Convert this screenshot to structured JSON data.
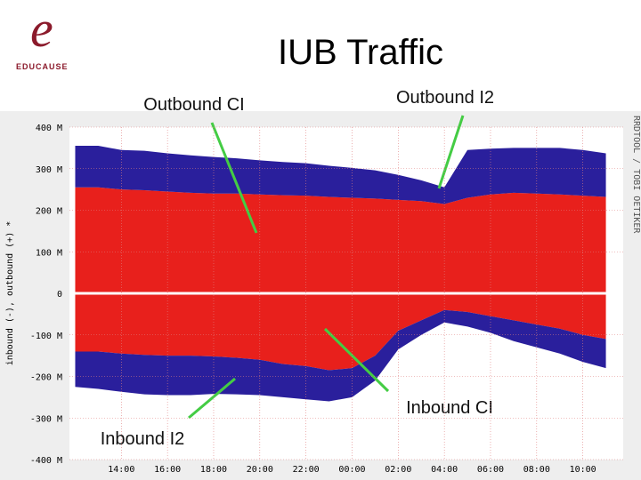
{
  "logo": "EDUCAUSE",
  "chart_data": {
    "type": "area",
    "title": "IUB Traffic",
    "y_label": "inbound (-), outbound (+) *",
    "side_label": "RRDTOOL / TOBI OETIKER",
    "x": [
      12,
      13,
      14,
      15,
      16,
      17,
      18,
      19,
      20,
      21,
      22,
      23,
      24,
      25,
      26,
      27,
      28,
      29,
      30,
      31,
      32,
      33,
      34,
      35
    ],
    "series": [
      {
        "name": "Outbound CI",
        "color": "#e8201c",
        "values": [
          255,
          255,
          250,
          248,
          245,
          242,
          240,
          240,
          238,
          236,
          235,
          232,
          230,
          228,
          225,
          222,
          215,
          230,
          238,
          242,
          240,
          238,
          235,
          232
        ]
      },
      {
        "name": "Outbound I2",
        "color": "#2a1f9c",
        "values": [
          100,
          100,
          95,
          95,
          92,
          90,
          88,
          85,
          82,
          80,
          78,
          75,
          72,
          68,
          60,
          50,
          40,
          115,
          110,
          108,
          110,
          112,
          110,
          105
        ]
      },
      {
        "name": "Inbound CI",
        "color": "#e8201c",
        "values": [
          -140,
          -140,
          -145,
          -148,
          -150,
          -150,
          -152,
          -155,
          -160,
          -170,
          -175,
          -185,
          -180,
          -150,
          -90,
          -65,
          -40,
          -45,
          -55,
          -65,
          -75,
          -85,
          -100,
          -110
        ]
      },
      {
        "name": "Inbound I2",
        "color": "#2a1f9c",
        "values": [
          -85,
          -90,
          -92,
          -95,
          -95,
          -95,
          -90,
          -88,
          -85,
          -80,
          -80,
          -75,
          -70,
          -60,
          -45,
          -35,
          -30,
          -35,
          -40,
          -50,
          -55,
          -60,
          -65,
          -70
        ]
      }
    ],
    "xlim": [
      11.75,
      35.75
    ],
    "xticks": [
      {
        "value": 14,
        "label": "14:00"
      },
      {
        "value": 16,
        "label": "16:00"
      },
      {
        "value": 18,
        "label": "18:00"
      },
      {
        "value": 20,
        "label": "20:00"
      },
      {
        "value": 22,
        "label": "22:00"
      },
      {
        "value": 24,
        "label": "00:00"
      },
      {
        "value": 26,
        "label": "02:00"
      },
      {
        "value": 28,
        "label": "04:00"
      },
      {
        "value": 30,
        "label": "06:00"
      },
      {
        "value": 32,
        "label": "08:00"
      },
      {
        "value": 34,
        "label": "10:00"
      }
    ],
    "ylim": [
      -400,
      400
    ],
    "yticks": [
      {
        "value": 400,
        "label": "400 M"
      },
      {
        "value": 300,
        "label": "300 M"
      },
      {
        "value": 200,
        "label": "200 M"
      },
      {
        "value": 100,
        "label": "100 M"
      },
      0,
      {
        "value": -100,
        "label": "-100 M"
      },
      {
        "value": -200,
        "label": "-200 M"
      },
      {
        "value": -300,
        "label": "-300 M"
      },
      {
        "value": -400,
        "label": "-400 M"
      }
    ],
    "grid": true
  }
}
